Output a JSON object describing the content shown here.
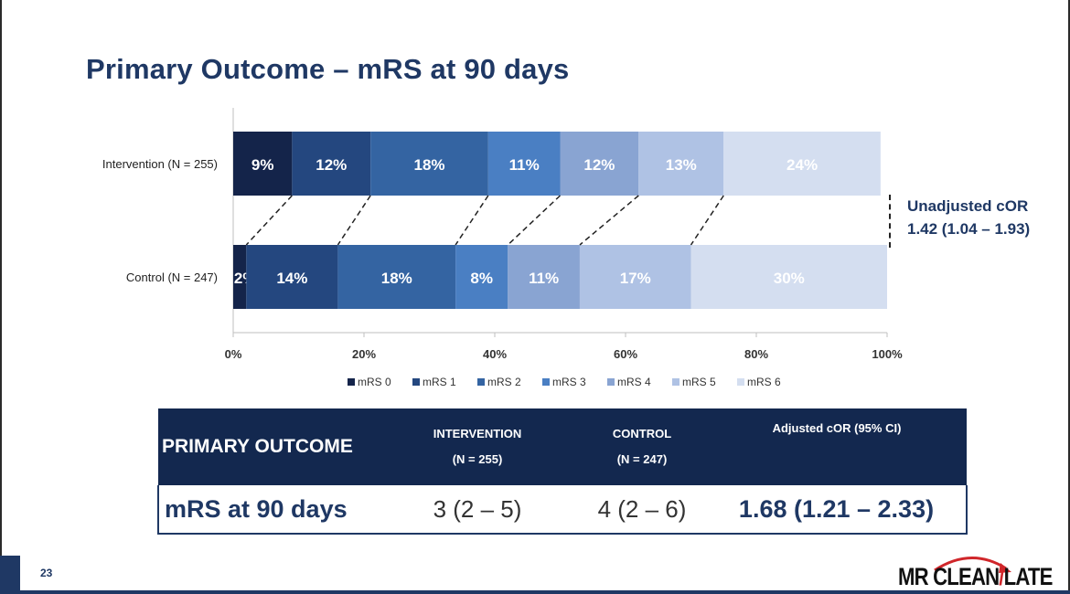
{
  "title": "Primary Outcome – mRS at 90 days",
  "chart_data": {
    "type": "bar",
    "orientation": "horizontal-stacked-100",
    "categories": [
      "Intervention (N = 255)",
      "Control (N = 247)"
    ],
    "series": [
      {
        "name": "mRS 0",
        "values": [
          9,
          2
        ],
        "labels": [
          "9%",
          "2%"
        ],
        "color": "#14244a"
      },
      {
        "name": "mRS 1",
        "values": [
          12,
          14
        ],
        "labels": [
          "12%",
          "14%"
        ],
        "color": "#24477f"
      },
      {
        "name": "mRS 2",
        "values": [
          18,
          18
        ],
        "labels": [
          "18%",
          "18%"
        ],
        "color": "#3464a2"
      },
      {
        "name": "mRS 3",
        "values": [
          11,
          8
        ],
        "labels": [
          "11%",
          "8%"
        ],
        "color": "#4a7fc3"
      },
      {
        "name": "mRS 4",
        "values": [
          12,
          11
        ],
        "labels": [
          "12%",
          "11%"
        ],
        "color": "#89a4d2"
      },
      {
        "name": "mRS 5",
        "values": [
          13,
          17
        ],
        "labels": [
          "13%",
          "17%"
        ],
        "color": "#afc2e4"
      },
      {
        "name": "mRS 6",
        "values": [
          24,
          30
        ],
        "labels": [
          "24%",
          "30%"
        ],
        "color": "#d4def0"
      }
    ],
    "xticks": [
      "0%",
      "20%",
      "40%",
      "60%",
      "80%",
      "100%"
    ],
    "xlim": [
      0,
      100
    ],
    "legend": "bottom"
  },
  "annotation": {
    "line1": "Unadjusted cOR",
    "line2": "1.42 (1.04 – 1.93)"
  },
  "table": {
    "header": {
      "outcome": "PRIMARY OUTCOME",
      "intervention": "INTERVENTION",
      "intervention_n": "(N = 255)",
      "control": "CONTROL",
      "control_n": "(N = 247)",
      "adjusted": "Adjusted cOR (95% CI)"
    },
    "row": {
      "label": "mRS at 90 days",
      "intervention": "3 (2 – 5)",
      "control": "4 (2 – 6)",
      "adjusted": "1.68 (1.21 – 2.33)"
    }
  },
  "slide_number": "23",
  "logo": {
    "left": "MR CLEAN",
    "slash": "/",
    "right": "LATE"
  },
  "colors": {
    "primary": "#1f3864",
    "header_bg": "#13284f",
    "logo_arrow": "#d0262a"
  }
}
